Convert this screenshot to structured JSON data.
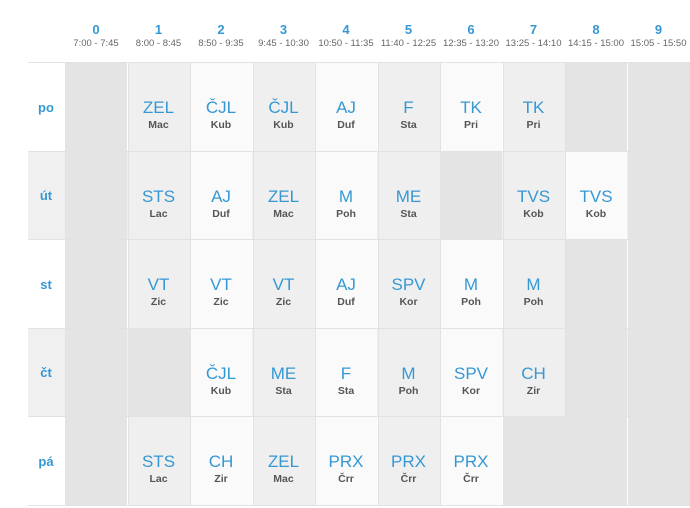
{
  "periods": [
    {
      "num": "0",
      "time": "7:00 - 7:45"
    },
    {
      "num": "1",
      "time": "8:00 - 8:45"
    },
    {
      "num": "2",
      "time": "8:50 - 9:35"
    },
    {
      "num": "3",
      "time": "9:45 - 10:30"
    },
    {
      "num": "4",
      "time": "10:50 - 11:35"
    },
    {
      "num": "5",
      "time": "11:40 - 12:25"
    },
    {
      "num": "6",
      "time": "12:35 - 13:20"
    },
    {
      "num": "7",
      "time": "13:25 - 14:10"
    },
    {
      "num": "8",
      "time": "14:15 - 15:00"
    },
    {
      "num": "9",
      "time": "15:05 - 15:50"
    }
  ],
  "days": [
    {
      "label": "po",
      "cells": [
        null,
        {
          "subject": "ZEL",
          "teacher": "Mac"
        },
        {
          "subject": "ČJL",
          "teacher": "Kub"
        },
        {
          "subject": "ČJL",
          "teacher": "Kub"
        },
        {
          "subject": "AJ",
          "teacher": "Duf"
        },
        {
          "subject": "F",
          "teacher": "Sta"
        },
        {
          "subject": "TK",
          "teacher": "Pri"
        },
        {
          "subject": "TK",
          "teacher": "Pri"
        },
        null,
        null
      ]
    },
    {
      "label": "út",
      "cells": [
        null,
        {
          "subject": "STS",
          "teacher": "Lac"
        },
        {
          "subject": "AJ",
          "teacher": "Duf"
        },
        {
          "subject": "ZEL",
          "teacher": "Mac"
        },
        {
          "subject": "M",
          "teacher": "Poh"
        },
        {
          "subject": "ME",
          "teacher": "Sta"
        },
        null,
        {
          "subject": "TVS",
          "teacher": "Kob"
        },
        {
          "subject": "TVS",
          "teacher": "Kob"
        },
        null
      ]
    },
    {
      "label": "st",
      "cells": [
        null,
        {
          "subject": "VT",
          "teacher": "Zic"
        },
        {
          "subject": "VT",
          "teacher": "Zic"
        },
        {
          "subject": "VT",
          "teacher": "Zic"
        },
        {
          "subject": "AJ",
          "teacher": "Duf"
        },
        {
          "subject": "SPV",
          "teacher": "Kor"
        },
        {
          "subject": "M",
          "teacher": "Poh"
        },
        {
          "subject": "M",
          "teacher": "Poh"
        },
        null,
        null
      ]
    },
    {
      "label": "čt",
      "cells": [
        null,
        null,
        {
          "subject": "ČJL",
          "teacher": "Kub"
        },
        {
          "subject": "ME",
          "teacher": "Sta"
        },
        {
          "subject": "F",
          "teacher": "Sta"
        },
        {
          "subject": "M",
          "teacher": "Poh"
        },
        {
          "subject": "SPV",
          "teacher": "Kor"
        },
        {
          "subject": "CH",
          "teacher": "Zir"
        },
        null,
        null
      ]
    },
    {
      "label": "pá",
      "cells": [
        null,
        {
          "subject": "STS",
          "teacher": "Lac"
        },
        {
          "subject": "CH",
          "teacher": "Zir"
        },
        {
          "subject": "ZEL",
          "teacher": "Mac"
        },
        {
          "subject": "PRX",
          "teacher": "Črr"
        },
        {
          "subject": "PRX",
          "teacher": "Črr"
        },
        {
          "subject": "PRX",
          "teacher": "Črr"
        },
        null,
        null,
        null
      ]
    }
  ]
}
